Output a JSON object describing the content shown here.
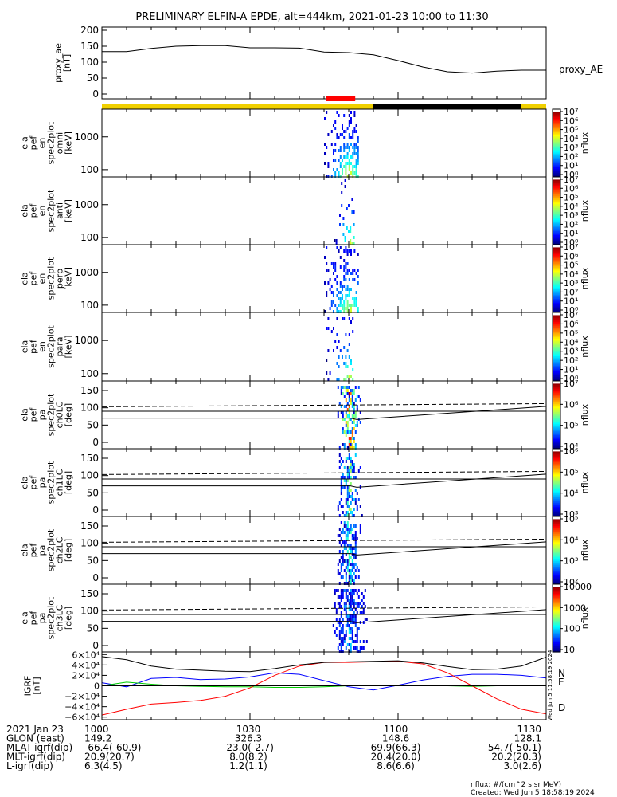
{
  "title": "PRELIMINARY ELFIN-A EPDE, alt=444km, 2021-01-23 10:00 to 11:30",
  "chart_data": {
    "type": "line",
    "x_range": [
      "10:00",
      "11:30"
    ],
    "x_tick_labels": [
      "1000",
      "1030",
      "1100",
      "1130"
    ],
    "panels": [
      {
        "id": "proxy_ae",
        "ylabel": [
          "proxy_ae",
          "[nT]"
        ],
        "ylim": [
          0,
          200
        ],
        "yticks": [
          "0",
          "50",
          "100",
          "150",
          "200"
        ],
        "series": [
          {
            "name": "proxy_AE",
            "x": [
              "10:00",
              "10:05",
              "10:10",
              "10:15",
              "10:20",
              "10:25",
              "10:30",
              "10:35",
              "10:40",
              "10:45",
              "10:50",
              "10:55",
              "11:00",
              "11:05",
              "11:10",
              "11:15",
              "11:20",
              "11:25",
              "11:30"
            ],
            "y": [
              133,
              133,
              143,
              150,
              152,
              152,
              145,
              145,
              144,
              132,
              130,
              123,
              105,
              85,
              70,
              66,
              72,
              75,
              75
            ],
            "color": "#000000"
          }
        ]
      },
      {
        "id": "status_bar",
        "segments": [
          {
            "from": "10:00",
            "to": "10:55",
            "color": "#f0d000"
          },
          {
            "from": "10:55",
            "to": "11:25",
            "color": "#000000"
          },
          {
            "from": "11:25",
            "to": "11:30",
            "color": "#f0d000"
          }
        ],
        "science_zone": {
          "from": "10:45",
          "to": "10:51",
          "color": "#ff0000"
        }
      },
      {
        "id": "spec_omni",
        "ylabel": [
          "ela",
          "pef",
          "en",
          "spec2plot",
          "omni",
          "[keV]"
        ],
        "yscale": "log",
        "ylim": [
          60,
          7000
        ],
        "yticks": [
          "100",
          "1000"
        ],
        "colorbar": {
          "label": "nflux",
          "scale": "log",
          "ticks": [
            "10⁰",
            "10¹",
            "10²",
            "10³",
            "10⁴",
            "10⁵",
            "10⁶",
            "10⁷"
          ]
        },
        "event": {
          "from": "10:45",
          "to": "10:52",
          "peak": "10:50"
        }
      },
      {
        "id": "spec_anti",
        "ylabel": [
          "ela",
          "pef",
          "en",
          "spec2plot",
          "anti",
          "[keV]"
        ],
        "yscale": "log",
        "ylim": [
          60,
          7000
        ],
        "yticks": [
          "100",
          "1000"
        ],
        "colorbar": {
          "label": "nflux",
          "scale": "log",
          "ticks": [
            "10⁰",
            "10¹",
            "10²",
            "10³",
            "10⁴",
            "10⁵",
            "10⁶",
            "10⁷"
          ]
        },
        "event": {
          "from": "10:47",
          "to": "10:51",
          "peak": "10:50"
        }
      },
      {
        "id": "spec_perp",
        "ylabel": [
          "ela",
          "pef",
          "en",
          "spec2plot",
          "perp",
          "[keV]"
        ],
        "yscale": "log",
        "ylim": [
          60,
          7000
        ],
        "yticks": [
          "100",
          "1000"
        ],
        "colorbar": {
          "label": "nflux",
          "scale": "log",
          "ticks": [
            "10⁰",
            "10¹",
            "10²",
            "10³",
            "10⁴",
            "10⁵",
            "10⁶",
            "10⁷"
          ]
        },
        "event": {
          "from": "10:45",
          "to": "10:52",
          "peak": "10:50"
        }
      },
      {
        "id": "spec_para",
        "ylabel": [
          "ela",
          "pef",
          "en",
          "spec2plot",
          "para",
          "[keV]"
        ],
        "yscale": "log",
        "ylim": [
          60,
          7000
        ],
        "yticks": [
          "100",
          "1000"
        ],
        "colorbar": {
          "label": "nflux",
          "scale": "log",
          "ticks": [
            "10⁰",
            "10¹",
            "10²",
            "10³",
            "10⁴",
            "10⁵",
            "10⁶",
            "10⁷"
          ]
        },
        "event": {
          "from": "10:45",
          "to": "10:51",
          "peak": "10:50"
        }
      },
      {
        "id": "pa_ch0",
        "ylabel": [
          "ela",
          "pef",
          "pa",
          "spec2plot",
          "ch0LC",
          "[deg]"
        ],
        "ylim": [
          0,
          180
        ],
        "yticks": [
          "0",
          "50",
          "100",
          "150"
        ],
        "colorbar": {
          "label": "nflux",
          "scale": "log",
          "ticks": [
            "10⁴",
            "10⁵",
            "10⁶",
            "10⁷"
          ]
        }
      },
      {
        "id": "pa_ch1",
        "ylabel": [
          "ela",
          "pef",
          "pa",
          "spec2plot",
          "ch1LC",
          "[deg]"
        ],
        "ylim": [
          0,
          180
        ],
        "yticks": [
          "0",
          "50",
          "100",
          "150"
        ],
        "colorbar": {
          "label": "nflux",
          "scale": "log",
          "ticks": [
            "10³",
            "10⁴",
            "10⁵",
            "10⁶"
          ]
        }
      },
      {
        "id": "pa_ch2",
        "ylabel": [
          "ela",
          "pef",
          "pa",
          "spec2plot",
          "ch2LC",
          "[deg]"
        ],
        "ylim": [
          0,
          180
        ],
        "yticks": [
          "0",
          "50",
          "100",
          "150"
        ],
        "colorbar": {
          "label": "nflux",
          "scale": "log",
          "ticks": [
            "10²",
            "10³",
            "10⁴",
            "10⁵"
          ]
        }
      },
      {
        "id": "pa_ch3",
        "ylabel": [
          "ela",
          "pef",
          "pa",
          "spec2plot",
          "ch3LC",
          "[deg]"
        ],
        "ylim": [
          0,
          180
        ],
        "yticks": [
          "0",
          "50",
          "100",
          "150"
        ],
        "colorbar": {
          "label": "nflux",
          "scale": "log",
          "ticks": [
            "10",
            "100",
            "1000",
            "10000"
          ]
        }
      },
      {
        "id": "igrf",
        "ylabel": [
          "IGRF",
          "[nT]"
        ],
        "ylim": [
          -65000,
          65000
        ],
        "yticks": [
          "6×10⁴",
          "4×10⁴",
          "2×10⁴",
          "0",
          "−2×10⁴",
          "−4×10⁴",
          "−6×10⁴"
        ],
        "series": [
          {
            "name": "N",
            "color": "#0000ff",
            "x": [
              "10:00",
              "10:05",
              "10:10",
              "10:15",
              "10:20",
              "10:25",
              "10:30",
              "10:35",
              "10:40",
              "10:45",
              "10:50",
              "10:55",
              "11:00",
              "11:05",
              "11:10",
              "11:15",
              "11:20",
              "11:25",
              "11:30"
            ],
            "y": [
              6000,
              -2000,
              14000,
              16000,
              12000,
              13000,
              17000,
              25000,
              22000,
              10000,
              -2000,
              -8000,
              1000,
              11000,
              18000,
              22000,
              22000,
              20000,
              15000
            ]
          },
          {
            "name": "E",
            "color": "#00cc00",
            "x": [
              "10:00",
              "10:05",
              "10:10",
              "10:15",
              "10:20",
              "10:25",
              "10:30",
              "10:35",
              "10:40",
              "10:45",
              "10:50",
              "10:55",
              "11:00",
              "11:05",
              "11:10",
              "11:15",
              "11:20",
              "11:25",
              "11:30"
            ],
            "y": [
              0,
              7000,
              3000,
              0,
              -1000,
              -2000,
              -2000,
              -3000,
              -3000,
              -2000,
              0,
              1000,
              0,
              0,
              0,
              -1000,
              0,
              0,
              0
            ]
          },
          {
            "name": "D",
            "color": "#ff0000",
            "x": [
              "10:00",
              "10:05",
              "10:10",
              "10:15",
              "10:20",
              "10:25",
              "10:30",
              "10:35",
              "10:40",
              "10:45",
              "10:50",
              "10:55",
              "11:00",
              "11:05",
              "11:10",
              "11:15",
              "11:20",
              "11:25",
              "11:30"
            ],
            "y": [
              -56000,
              -45000,
              -35000,
              -32000,
              -28000,
              -20000,
              -4000,
              20000,
              38000,
              45000,
              45000,
              46000,
              47000,
              42000,
              25000,
              0,
              -25000,
              -45000,
              -54000
            ]
          },
          {
            "name": "",
            "color": "#000000",
            "x": [
              "10:00",
              "10:05",
              "10:10",
              "10:15",
              "10:20",
              "10:25",
              "10:30",
              "10:35",
              "10:40",
              "10:45",
              "10:50",
              "10:55",
              "11:00",
              "11:05",
              "11:10",
              "11:15",
              "11:20",
              "11:25",
              "11:30"
            ],
            "y": [
              56000,
              50000,
              38000,
              32000,
              30000,
              28000,
              27000,
              33000,
              40000,
              45000,
              46000,
              47000,
              48000,
              44000,
              37000,
              31000,
              32000,
              38000,
              55000
            ]
          }
        ],
        "zero_line": true
      }
    ],
    "ephemeris": {
      "rows": [
        {
          "label": "2021 Jan 23",
          "values": [
            "1000",
            "1030",
            "1100",
            "1130"
          ]
        },
        {
          "label": "GLON (east)",
          "values": [
            "149.2",
            "326.3",
            "148.6",
            "128.1"
          ]
        },
        {
          "label": "MLAT-igrf(dip)",
          "values": [
            "-66.4(-60.9)",
            "-23.0(-2.7)",
            "69.9(66.3)",
            "-54.7(-50.1)"
          ]
        },
        {
          "label": "MLT-igrf(dip)",
          "values": [
            "20.9(20.7)",
            "8.0(8.2)",
            "20.4(20.0)",
            "20.2(20.3)"
          ]
        },
        {
          "label": "L-igrf(dip)",
          "values": [
            "6.3(4.5)",
            "1.2(1.1)",
            "8.6(6.6)",
            "3.0(2.6)"
          ]
        }
      ]
    },
    "footer": {
      "units": "nflux: #/(cm^2 s sr MeV)",
      "created": "Created: Wed Jun  5 18:58:19 2024",
      "side_stamp": "Wed Jun  5 11:58:19 2024"
    }
  }
}
